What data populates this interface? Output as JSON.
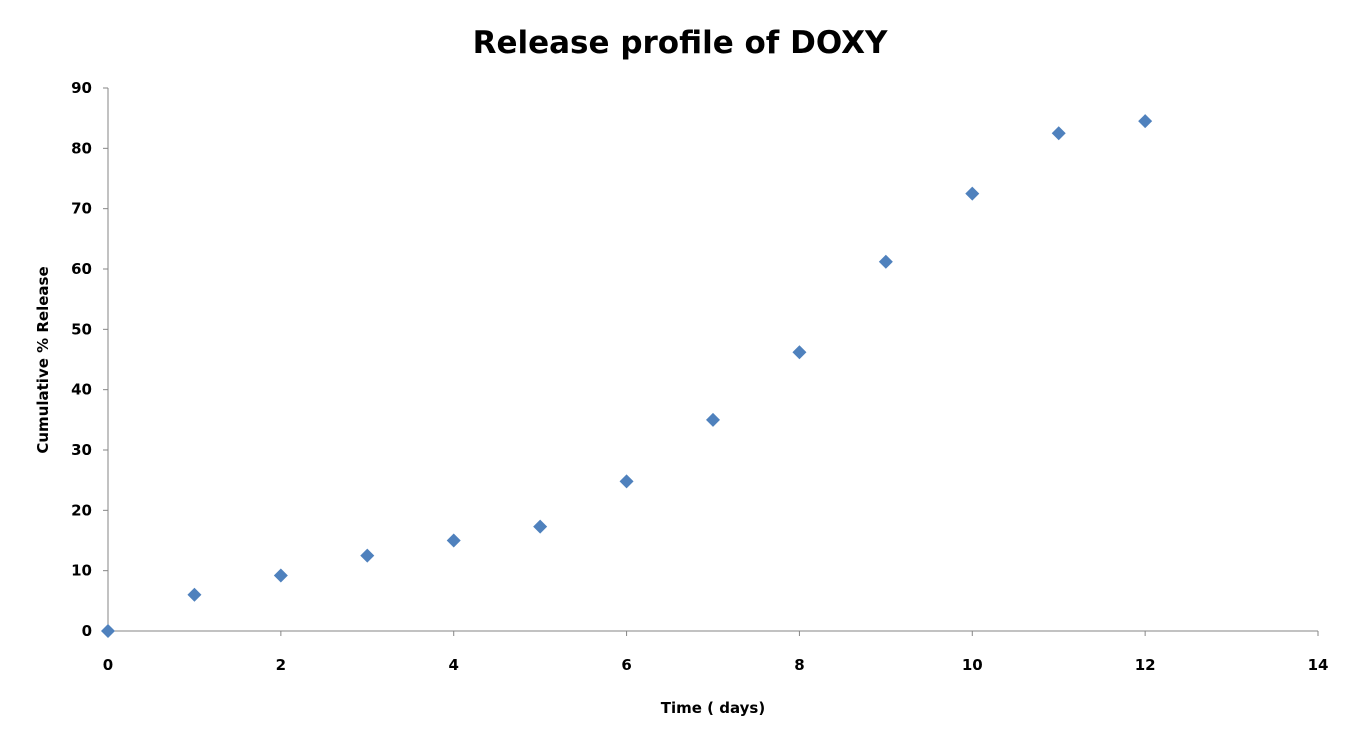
{
  "chart_data": {
    "type": "scatter",
    "title": "Release profile of DOXY",
    "xlabel": "Time ( days)",
    "ylabel": "Cumulative % Release",
    "xlim": [
      0,
      14
    ],
    "ylim": [
      0,
      90
    ],
    "x_ticks": [
      0,
      2,
      4,
      6,
      8,
      10,
      12,
      14
    ],
    "y_ticks": [
      0,
      10,
      20,
      30,
      40,
      50,
      60,
      70,
      80,
      90
    ],
    "grid": false,
    "legend": "none",
    "marker": "diamond",
    "marker_color": "#4f81bd",
    "axis_color": "#868686",
    "series": [
      {
        "x": [
          0,
          1,
          2,
          3,
          4,
          5,
          6,
          7,
          8,
          9,
          10,
          11,
          12
        ],
        "y": [
          0,
          6,
          9.2,
          12.5,
          15,
          17.3,
          24.8,
          35,
          46.2,
          61.2,
          72.5,
          82.5,
          84.5
        ]
      }
    ]
  }
}
